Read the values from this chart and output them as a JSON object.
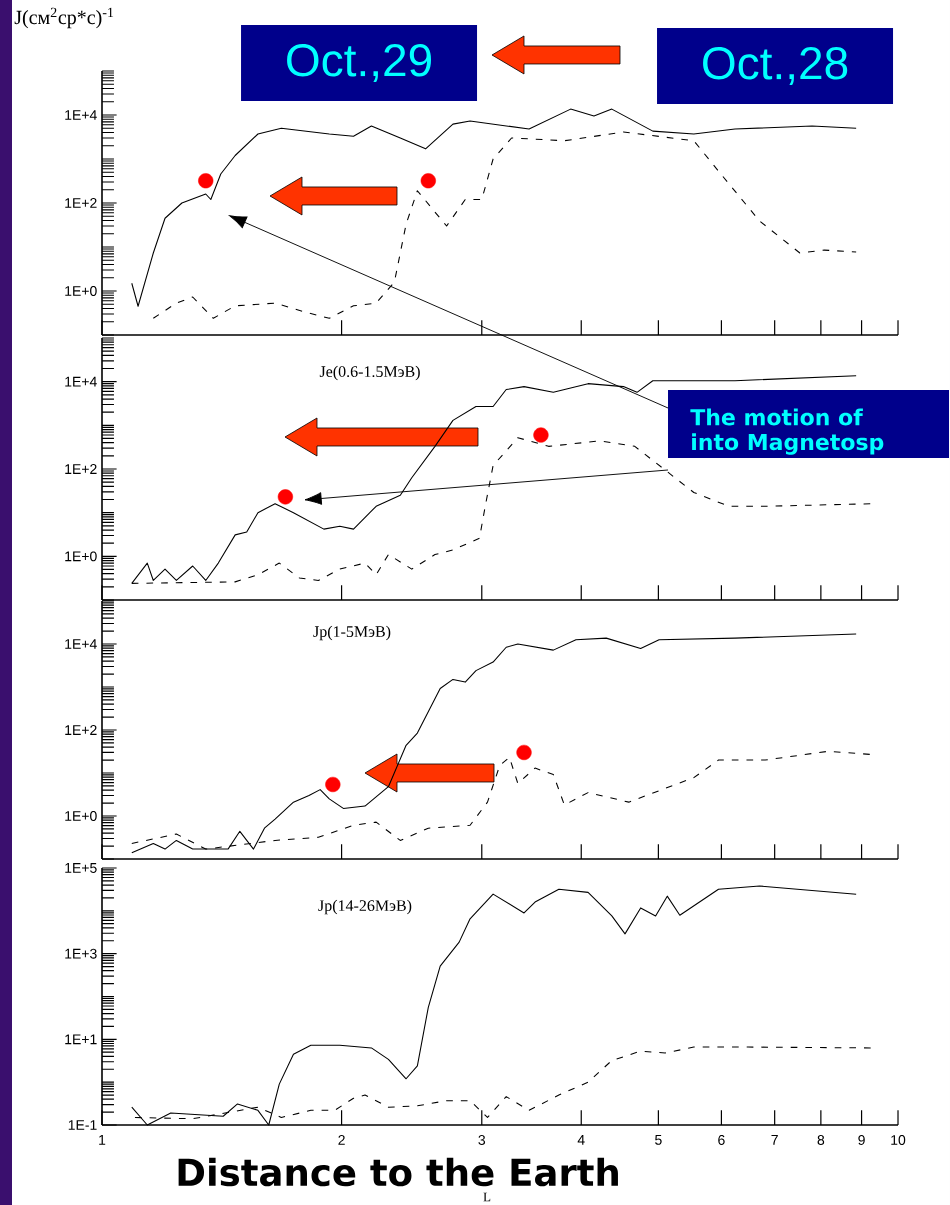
{
  "chart_data": [
    {
      "type": "line",
      "ylabel": "J(см$^{2}$ср*с)$^{-1}$",
      "annotations": [
        "Oct.,29",
        "Oct.,28"
      ],
      "log": "xy",
      "xlim": [
        1,
        10
      ],
      "ylim": [
        0.1,
        100000
      ],
      "xticks": [
        1,
        2,
        3,
        4,
        5,
        6,
        7,
        8,
        9,
        10
      ],
      "yticks": [
        {
          "value": 1,
          "label": "1E+0"
        },
        {
          "value": 100,
          "label": "1E+2"
        },
        {
          "value": 10000,
          "label": "1E+4"
        }
      ],
      "tick_labels": "y",
      "series": [
        {
          "color": "#000000",
          "line_style": "solid",
          "x": [
            1.09,
            1.11,
            1.16,
            1.2,
            1.26,
            1.35,
            1.37,
            1.41,
            1.47,
            1.57,
            1.68,
            1.93,
            2.07,
            2.18,
            2.37,
            2.55,
            2.76,
            2.9,
            3.44,
            3.88,
            4.15,
            4.37,
            4.92,
            5.54,
            6.24,
            7.8,
            8.86
          ],
          "values": [
            1.5,
            0.45,
            7.3,
            45,
            100,
            160,
            120,
            455,
            1200,
            3700,
            5000,
            3700,
            3300,
            5600,
            3000,
            1700,
            6200,
            7300,
            4800,
            13600,
            9500,
            13600,
            4300,
            3700,
            4800,
            5600,
            5000
          ]
        },
        {
          "color": "#000000",
          "line_style": "dashed",
          "x": [
            1.16,
            1.24,
            1.3,
            1.38,
            1.47,
            1.65,
            1.8,
            1.93,
            2.07,
            2.21,
            2.33,
            2.41,
            2.49,
            2.62,
            2.71,
            2.86,
            3.0,
            3.1,
            3.27,
            3.81,
            4.52,
            5.54,
            5.95,
            6.7,
            7.53,
            8.08,
            8.86
          ],
          "values": [
            0.24,
            0.53,
            0.73,
            0.24,
            0.46,
            0.53,
            0.33,
            0.24,
            0.46,
            0.53,
            1.6,
            33,
            190,
            62,
            30,
            120,
            120,
            1000,
            3000,
            2600,
            4100,
            2600,
            530,
            39,
            7.3,
            8.5,
            7.7
          ]
        },
        {
          "type": "scatter",
          "color": "#ff0000",
          "marker": "circle",
          "x": [
            1.35,
            2.57
          ],
          "values": [
            320,
            320
          ]
        }
      ]
    },
    {
      "type": "line",
      "title": "Je(0.6-1.5МэВ)",
      "annotations": [
        "The motion of",
        "into Magnetosp"
      ],
      "log": "xy",
      "xlim": [
        1,
        10
      ],
      "ylim": [
        0.1,
        100000
      ],
      "xticks": [
        1,
        2,
        3,
        4,
        5,
        6,
        7,
        8,
        9,
        10
      ],
      "yticks": [
        {
          "value": 1,
          "label": "1E+0"
        },
        {
          "value": 100,
          "label": "1E+2"
        },
        {
          "value": 10000,
          "label": "1E+4"
        }
      ],
      "tick_labels": "y",
      "series": [
        {
          "color": "#000000",
          "line_style": "solid",
          "x": [
            1.09,
            1.14,
            1.16,
            1.2,
            1.24,
            1.3,
            1.35,
            1.4,
            1.47,
            1.52,
            1.57,
            1.65,
            1.74,
            1.9,
            1.99,
            2.07,
            2.21,
            2.37,
            2.45,
            2.62,
            2.76,
            2.95,
            3.1,
            3.22,
            3.39,
            3.69,
            4.08,
            4.52,
            4.7,
            4.92,
            6.24,
            8.86
          ],
          "values": [
            0.24,
            0.7,
            0.28,
            0.51,
            0.28,
            0.6,
            0.28,
            0.7,
            3.1,
            3.6,
            10,
            16,
            10,
            4.2,
            4.9,
            4.2,
            14,
            25,
            63,
            330,
            1300,
            2700,
            2700,
            6600,
            7700,
            5700,
            9000,
            7700,
            5700,
            10500,
            10500,
            13600
          ]
        },
        {
          "color": "#000000",
          "line_style": "dashed",
          "x": [
            1.09,
            1.47,
            1.57,
            1.67,
            1.77,
            1.87,
            1.99,
            2.14,
            2.21,
            2.29,
            2.45,
            2.62,
            2.76,
            2.98,
            3.03,
            3.1,
            3.33,
            3.64,
            4.22,
            4.67,
            5.54,
            6.13,
            6.81,
            9.25
          ],
          "values": [
            0.24,
            0.26,
            0.38,
            0.7,
            0.32,
            0.28,
            0.51,
            0.7,
            0.38,
            1.1,
            0.51,
            1.1,
            1.4,
            2.6,
            14,
            120,
            520,
            330,
            440,
            330,
            29,
            14,
            14,
            16
          ]
        },
        {
          "type": "scatter",
          "color": "#ff0000",
          "marker": "circle",
          "x": [
            1.7,
            3.56
          ],
          "values": [
            23,
            600
          ]
        }
      ]
    },
    {
      "type": "line",
      "title": "Jp(1-5МэВ)",
      "log": "xy",
      "xlim": [
        1,
        10
      ],
      "ylim": [
        0.1,
        100000
      ],
      "xticks": [
        1,
        2,
        3,
        4,
        5,
        6,
        7,
        8,
        9,
        10
      ],
      "yticks": [
        {
          "value": 1,
          "label": "1E+0"
        },
        {
          "value": 100,
          "label": "1E+2"
        },
        {
          "value": 10000,
          "label": "1E+4"
        }
      ],
      "tick_labels": "y",
      "series": [
        {
          "color": "#000000",
          "line_style": "solid",
          "x": [
            1.09,
            1.16,
            1.2,
            1.24,
            1.3,
            1.44,
            1.49,
            1.55,
            1.6,
            1.65,
            1.74,
            1.82,
            1.88,
            1.93,
            2.01,
            2.14,
            2.29,
            2.41,
            2.49,
            2.66,
            2.76,
            2.86,
            2.95,
            3.1,
            3.22,
            3.33,
            3.69,
            3.94,
            4.3,
            4.75,
            5.01,
            6.24,
            8.86
          ],
          "values": [
            0.14,
            0.23,
            0.17,
            0.27,
            0.17,
            0.17,
            0.44,
            0.17,
            0.52,
            0.85,
            2.1,
            3.0,
            4.1,
            2.5,
            1.5,
            1.7,
            4.8,
            44,
            85,
            920,
            1500,
            1300,
            2400,
            3800,
            8400,
            10000,
            7200,
            12500,
            13700,
            7900,
            12500,
            13700,
            17000
          ]
        },
        {
          "color": "#000000",
          "line_style": "dashed",
          "x": [
            1.09,
            1.24,
            1.35,
            1.65,
            1.87,
            2.07,
            2.21,
            2.37,
            2.57,
            2.9,
            3.05,
            3.16,
            3.25,
            3.33,
            3.5,
            3.69,
            3.81,
            4.08,
            4.59,
            4.83,
            5.54,
            5.95,
            6.81,
            8.18,
            9.25
          ],
          "values": [
            0.23,
            0.38,
            0.17,
            0.27,
            0.32,
            0.61,
            0.72,
            0.27,
            0.52,
            0.61,
            2.1,
            15,
            23,
            5.7,
            13,
            9.2,
            1.8,
            3.5,
            2.1,
            3.0,
            7.8,
            20,
            20,
            32,
            27
          ]
        },
        {
          "type": "scatter",
          "color": "#ff0000",
          "marker": "circle",
          "x": [
            1.95,
            3.39
          ],
          "values": [
            5.4,
            30
          ]
        }
      ]
    },
    {
      "type": "line",
      "title": "Jp(14-26МэВ)",
      "xlabel": "Distance to the Earth",
      "annotations": [
        "L"
      ],
      "log": "xy",
      "xlim": [
        1,
        10
      ],
      "ylim": [
        0.1,
        100000
      ],
      "xticks": [
        1,
        2,
        3,
        4,
        5,
        6,
        7,
        8,
        9,
        10
      ],
      "yticks": [
        {
          "value": 0.1,
          "label": "1E-1"
        },
        {
          "value": 10,
          "label": "1E+1"
        },
        {
          "value": 1000,
          "label": "1E+3"
        },
        {
          "value": 100000,
          "label": "1E+5"
        }
      ],
      "series": [
        {
          "color": "#000000",
          "line_style": "solid",
          "x": [
            1.09,
            1.14,
            1.22,
            1.42,
            1.48,
            1.57,
            1.62,
            1.67,
            1.74,
            1.83,
            1.99,
            2.18,
            2.29,
            2.41,
            2.49,
            2.57,
            2.66,
            2.81,
            2.9,
            3.1,
            3.39,
            3.5,
            3.75,
            4.08,
            4.37,
            4.54,
            4.75,
            4.96,
            5.13,
            5.32,
            5.95,
            6.7,
            8.86
          ],
          "values": [
            0.26,
            0.1,
            0.19,
            0.16,
            0.31,
            0.22,
            0.1,
            0.9,
            4.5,
            7.3,
            7.3,
            6.3,
            3.4,
            1.2,
            2.4,
            56,
            510,
            1860,
            6500,
            24500,
            8900,
            16000,
            32000,
            27000,
            7600,
            2900,
            11700,
            7600,
            22000,
            7900,
            32000,
            38000,
            24500
          ]
        },
        {
          "color": "#000000",
          "line_style": "dashed",
          "x": [
            1.1,
            1.3,
            1.57,
            1.68,
            1.83,
            1.96,
            2.07,
            2.14,
            2.29,
            2.49,
            2.71,
            2.9,
            3.05,
            3.22,
            3.44,
            3.75,
            4.08,
            4.37,
            4.75,
            5.1,
            5.54,
            6.48,
            9.25
          ],
          "values": [
            0.15,
            0.14,
            0.26,
            0.15,
            0.22,
            0.22,
            0.42,
            0.5,
            0.26,
            0.28,
            0.37,
            0.37,
            0.15,
            0.46,
            0.22,
            0.5,
            1.0,
            3.2,
            5.3,
            4.8,
            6.6,
            6.6,
            6.3
          ]
        }
      ]
    }
  ]
}
